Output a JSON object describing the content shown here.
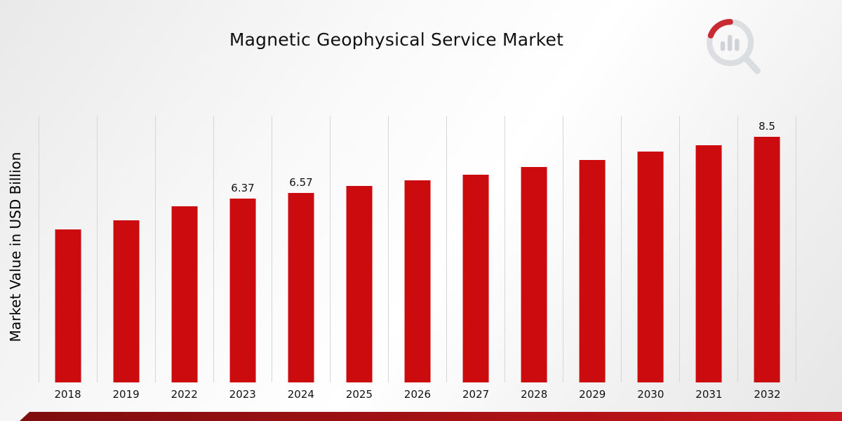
{
  "chart_data": {
    "type": "bar",
    "title": "Magnetic Geophysical Service Market",
    "xlabel": "",
    "ylabel": "Market Value in USD Billion",
    "categories": [
      "2018",
      "2019",
      "2022",
      "2023",
      "2024",
      "2025",
      "2026",
      "2027",
      "2028",
      "2029",
      "2030",
      "2031",
      "2032"
    ],
    "values": [
      5.3,
      5.6,
      6.1,
      6.37,
      6.57,
      6.8,
      7.0,
      7.2,
      7.45,
      7.7,
      8.0,
      8.2,
      8.5
    ],
    "data_labels": {
      "2023": "6.37",
      "2024": "6.57",
      "2032": "8.5"
    },
    "ylim": [
      0,
      9.23
    ],
    "bar_color": "#cc0b0f",
    "gridlines": "vertical",
    "gridline_color": "#d6d6d6",
    "legend": "none"
  },
  "footer_bar": {
    "color_left": "#7e0d0d",
    "color_right": "#c9151b"
  },
  "logo": {
    "name": "market-research-chart-logo"
  }
}
